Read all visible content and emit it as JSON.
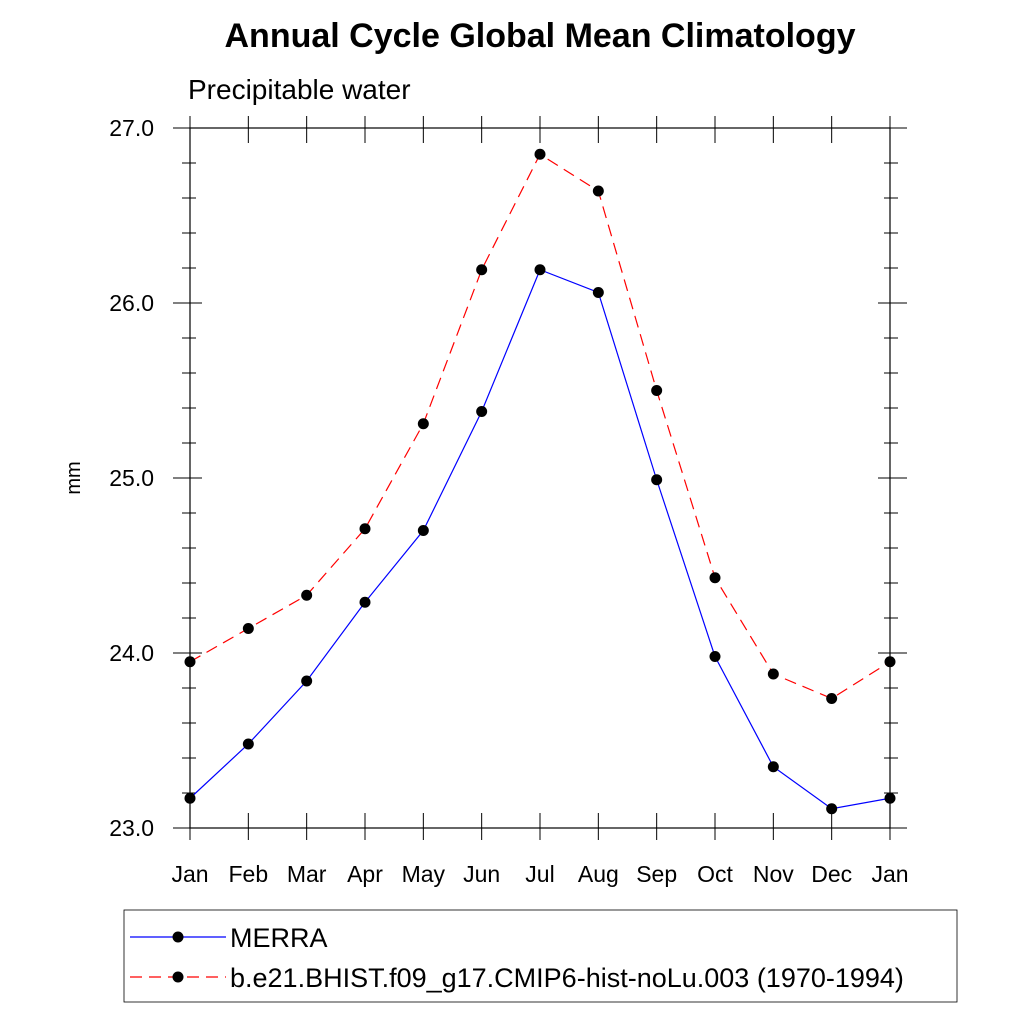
{
  "chart_data": {
    "type": "line",
    "title": "Annual Cycle Global Mean Climatology",
    "subtitle": "Precipitable water",
    "xlabel": "",
    "ylabel": "mm",
    "categories": [
      "Jan",
      "Feb",
      "Mar",
      "Apr",
      "May",
      "Jun",
      "Jul",
      "Aug",
      "Sep",
      "Oct",
      "Nov",
      "Dec",
      "Jan"
    ],
    "ylim": [
      23.0,
      27.0
    ],
    "yticks": [
      "23.0",
      "24.0",
      "25.0",
      "26.0",
      "27.0"
    ],
    "grid": false,
    "legend_position": "bottom",
    "series": [
      {
        "name": "MERRA",
        "color": "#0000ff",
        "line_style": "solid",
        "marker": "filled-circle",
        "values": [
          23.17,
          23.48,
          23.84,
          24.29,
          24.7,
          25.38,
          26.19,
          26.06,
          24.99,
          23.98,
          23.35,
          23.11,
          23.17
        ]
      },
      {
        "name": "b.e21.BHIST.f09_g17.CMIP6-hist-noLu.003 (1970-1994)",
        "color": "#ff0000",
        "line_style": "dashed",
        "marker": "filled-circle",
        "values": [
          23.95,
          24.14,
          24.33,
          24.71,
          25.31,
          26.19,
          26.85,
          26.64,
          25.5,
          24.43,
          23.88,
          23.74,
          23.95
        ]
      }
    ]
  }
}
